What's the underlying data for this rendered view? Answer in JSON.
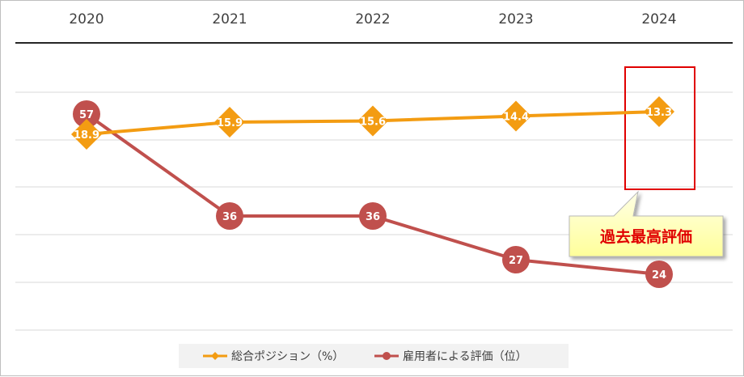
{
  "chart_data": {
    "type": "line",
    "categories": [
      "2020",
      "2021",
      "2022",
      "2023",
      "2024"
    ],
    "series": [
      {
        "name": "総合ポジション（%）",
        "values": [
          18.9,
          15.9,
          15.6,
          14.4,
          13.3
        ],
        "labels": [
          "18.9",
          "15.9",
          "15.6",
          "14.4",
          "13.3"
        ],
        "color": "#f39c12",
        "marker": "diamond"
      },
      {
        "name": "雇用者による評価（位）",
        "values": [
          57,
          36,
          36,
          27,
          24
        ],
        "labels": [
          "57",
          "36",
          "36",
          "27",
          "24"
        ],
        "color": "#c0504d",
        "marker": "circle"
      }
    ],
    "axis": "x-axis at top, value axes hidden",
    "grid": true,
    "legend": "bottom",
    "highlight": {
      "category": "2024",
      "color": "#e00000"
    }
  },
  "callout": {
    "text": "過去最高評価",
    "background": "#ffffc8",
    "text_color": "#e00000"
  }
}
